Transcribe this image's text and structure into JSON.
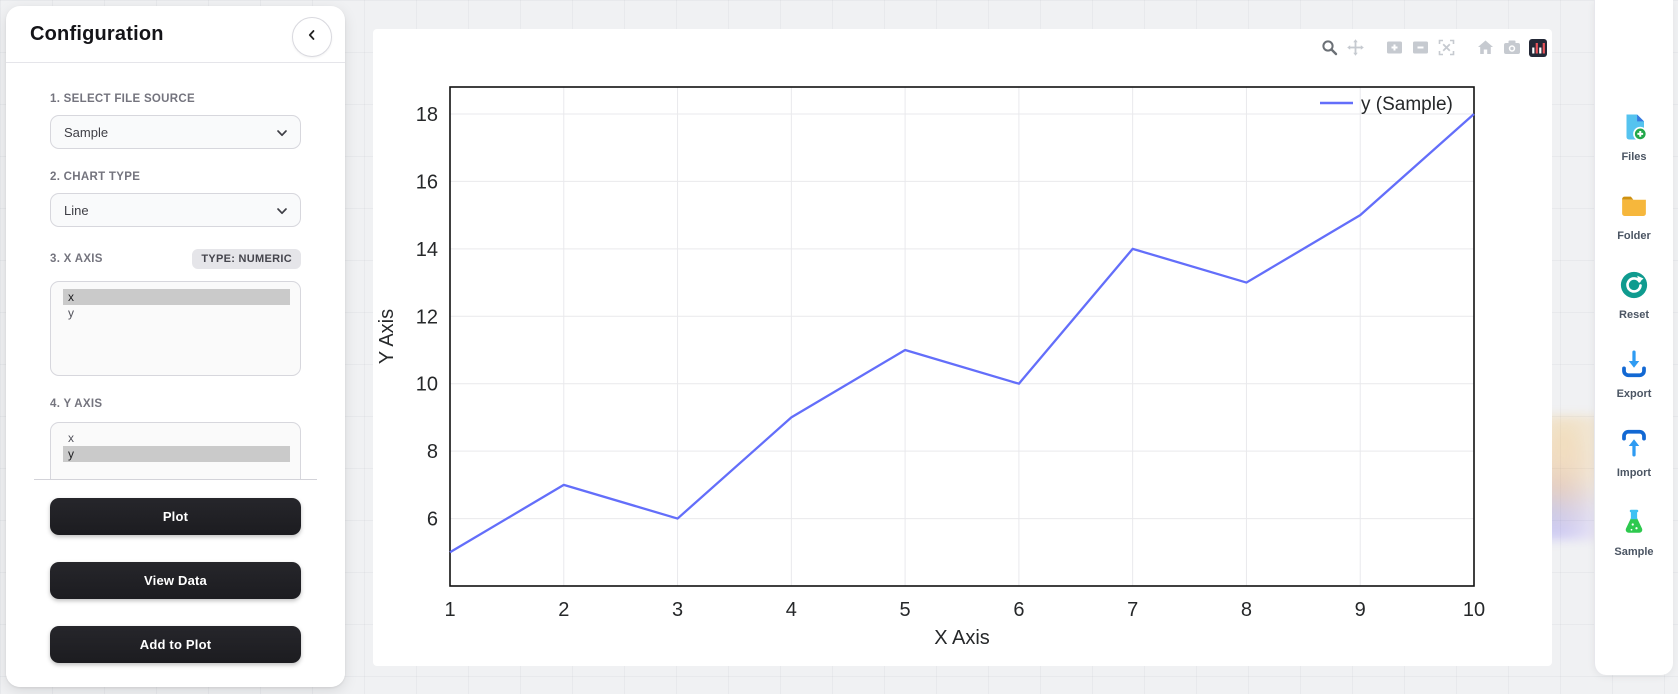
{
  "config_panel": {
    "title": "Configuration",
    "file_source": {
      "label": "1. SELECT FILE SOURCE",
      "value": "Sample"
    },
    "chart_type": {
      "label": "2. CHART TYPE",
      "value": "Line"
    },
    "x_axis": {
      "label": "3. X AXIS",
      "type_badge": "TYPE: NUMERIC",
      "options": [
        "x",
        "y"
      ],
      "selected": "x"
    },
    "y_axis": {
      "label": "4. Y AXIS",
      "options": [
        "x",
        "y"
      ],
      "selected": "y"
    },
    "plot_button": "Plot",
    "view_data_button": "View Data",
    "add_button": "Add to Plot"
  },
  "modebar_icons": [
    "zoom",
    "pan",
    "zoom-in",
    "zoom-out",
    "autoscale",
    "reset-axes",
    "download-plot",
    "plotly-logo"
  ],
  "action_rail": {
    "items": [
      {
        "icon": "file-add-icon",
        "label": "Files"
      },
      {
        "icon": "folder-icon",
        "label": "Folder"
      },
      {
        "icon": "reset-icon",
        "label": "Reset"
      },
      {
        "icon": "export-icon",
        "label": "Export"
      },
      {
        "icon": "import-icon",
        "label": "Import"
      },
      {
        "icon": "sample-flask-icon",
        "label": "Sample"
      }
    ]
  },
  "chart_data": {
    "type": "line",
    "x": [
      1,
      2,
      3,
      4,
      5,
      6,
      7,
      8,
      9,
      10
    ],
    "series": [
      {
        "name": "y (Sample)",
        "values": [
          5,
          7,
          6,
          9,
          11,
          10,
          14,
          13,
          15,
          18
        ],
        "color": "#636efa"
      }
    ],
    "title": "",
    "xlabel": "X Axis",
    "ylabel": "Y Axis",
    "xlim": [
      1,
      10
    ],
    "ylim": [
      4.0,
      18.8
    ],
    "xticks": [
      1,
      2,
      3,
      4,
      5,
      6,
      7,
      8,
      9,
      10
    ],
    "yticks": [
      6,
      8,
      10,
      12,
      14,
      16,
      18
    ],
    "grid": true,
    "grid_color": "#e9e9ec",
    "plot_border_color": "#111111",
    "tick_color": "#26282a",
    "legend": {
      "position": "top-right-inside",
      "entries": [
        "y (Sample)"
      ]
    }
  }
}
